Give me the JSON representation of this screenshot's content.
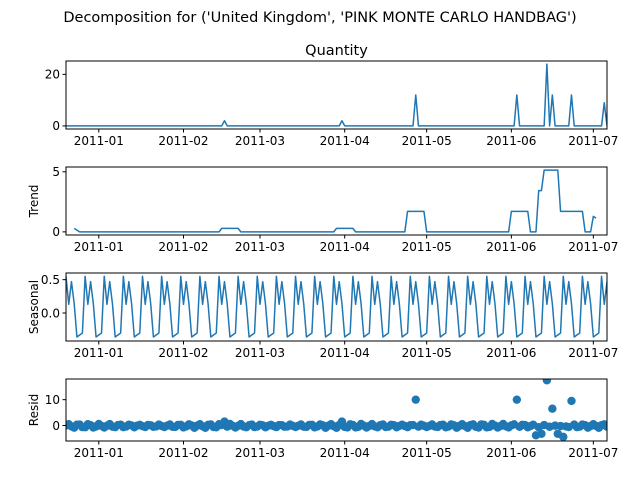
{
  "chart_data": {
    "type": "line",
    "suptitle": "Decomposition for ('United Kingdom', 'PINK MONTE CARLO HANDBAG')",
    "series_color": "#1f77b4",
    "x_range": [
      "2010-12-20",
      "2011-07-06"
    ],
    "x_ticks": [
      "2011-01-01",
      "2011-02-01",
      "2011-03-01",
      "2011-04-01",
      "2011-05-01",
      "2011-06-01",
      "2011-07-01"
    ],
    "x_tick_labels": [
      "2011-01",
      "2011-02",
      "2011-03",
      "2011-04",
      "2011-05",
      "2011-06",
      "2011-07"
    ],
    "seasonal_period_days": 7,
    "panels": [
      {
        "key": "observed",
        "title": "Quantity",
        "ylabel": "",
        "style": "line",
        "ylim": [
          -1.2,
          25.2
        ],
        "yticks": [
          0,
          20
        ],
        "ytick_labels": [
          "0",
          "20"
        ],
        "baseline": 0,
        "spikes": [
          [
            "2011-02-16",
            2
          ],
          [
            "2011-03-31",
            2
          ],
          [
            "2011-04-27",
            12
          ],
          [
            "2011-06-03",
            12
          ],
          [
            "2011-06-14",
            24
          ],
          [
            "2011-06-16",
            12
          ],
          [
            "2011-06-23",
            12
          ],
          [
            "2011-07-05",
            9
          ]
        ]
      },
      {
        "key": "trend",
        "title": "",
        "ylabel": "Trend",
        "style": "line",
        "ylim": [
          -0.26,
          5.4
        ],
        "yticks": [
          0,
          5
        ],
        "ytick_labels": [
          "0",
          "5"
        ],
        "points": [
          [
            "2010-12-23",
            0.29
          ],
          [
            "2010-12-25",
            0
          ],
          [
            "2011-02-14",
            0
          ],
          [
            "2011-02-15",
            0.29
          ],
          [
            "2011-02-21",
            0.29
          ],
          [
            "2011-02-22",
            0
          ],
          [
            "2011-03-28",
            0
          ],
          [
            "2011-03-29",
            0.29
          ],
          [
            "2011-04-04",
            0.29
          ],
          [
            "2011-04-05",
            0
          ],
          [
            "2011-04-23",
            0
          ],
          [
            "2011-04-24",
            1.71
          ],
          [
            "2011-04-30",
            1.71
          ],
          [
            "2011-05-01",
            0
          ],
          [
            "2011-05-31",
            0
          ],
          [
            "2011-06-01",
            1.71
          ],
          [
            "2011-06-07",
            1.71
          ],
          [
            "2011-06-08",
            0
          ],
          [
            "2011-06-10",
            0
          ],
          [
            "2011-06-11",
            3.43
          ],
          [
            "2011-06-12",
            3.43
          ],
          [
            "2011-06-13",
            5.14
          ],
          [
            "2011-06-18",
            5.14
          ],
          [
            "2011-06-19",
            1.71
          ],
          [
            "2011-06-27",
            1.71
          ],
          [
            "2011-06-28",
            0
          ],
          [
            "2011-06-30",
            0
          ],
          [
            "2011-07-01",
            1.29
          ],
          [
            "2011-07-02",
            1.14
          ]
        ]
      },
      {
        "key": "seasonal",
        "title": "",
        "ylabel": "Seasonal",
        "style": "line",
        "ylim": [
          -0.42,
          0.6
        ],
        "yticks": [
          0,
          0.5
        ],
        "ytick_labels": [
          "0.0",
          "0.5"
        ],
        "pattern": [
          0.55,
          0.13,
          0.47,
          0.14,
          -0.36,
          -0.33,
          -0.3
        ]
      },
      {
        "key": "resid",
        "title": "",
        "ylabel": "Resid",
        "style": "scatter",
        "zero_line": true,
        "ylim": [
          -6,
          18
        ],
        "yticks": [
          0,
          10
        ],
        "ytick_labels": [
          "0",
          "10"
        ],
        "outliers": [
          [
            "2011-02-16",
            1.5
          ],
          [
            "2011-03-31",
            1.5
          ],
          [
            "2011-04-27",
            10
          ],
          [
            "2011-06-03",
            10
          ],
          [
            "2011-06-14",
            17.5
          ],
          [
            "2011-06-16",
            6.5
          ],
          [
            "2011-06-23",
            9.5
          ]
        ]
      }
    ]
  }
}
